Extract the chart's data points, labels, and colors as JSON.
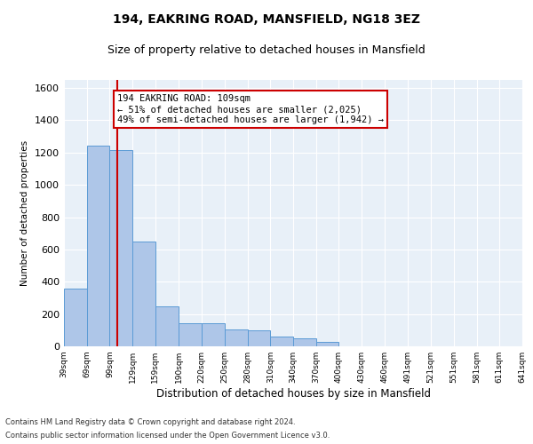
{
  "title1": "194, EAKRING ROAD, MANSFIELD, NG18 3EZ",
  "title2": "Size of property relative to detached houses in Mansfield",
  "xlabel": "Distribution of detached houses by size in Mansfield",
  "ylabel": "Number of detached properties",
  "footer1": "Contains HM Land Registry data © Crown copyright and database right 2024.",
  "footer2": "Contains public sector information licensed under the Open Government Licence v3.0.",
  "annotation_title": "194 EAKRING ROAD: 109sqm",
  "annotation_line1": "← 51% of detached houses are smaller (2,025)",
  "annotation_line2": "49% of semi-detached houses are larger (1,942) →",
  "property_size_sqm": 109,
  "bin_edges": [
    39,
    69,
    99,
    129,
    159,
    190,
    220,
    250,
    280,
    310,
    340,
    370,
    400,
    430,
    460,
    491,
    521,
    551,
    581,
    611,
    641
  ],
  "bar_values": [
    360,
    1245,
    1215,
    650,
    250,
    145,
    145,
    105,
    100,
    60,
    50,
    28,
    0,
    0,
    0,
    0,
    0,
    0,
    0,
    0
  ],
  "bar_color": "#aec6e8",
  "bar_edge_color": "#5b9bd5",
  "vline_color": "#cc0000",
  "vline_position": 109,
  "annotation_box_color": "#cc0000",
  "background_color": "#e8f0f8",
  "ylim": [
    0,
    1650
  ],
  "yticks": [
    0,
    200,
    400,
    600,
    800,
    1000,
    1200,
    1400,
    1600
  ]
}
